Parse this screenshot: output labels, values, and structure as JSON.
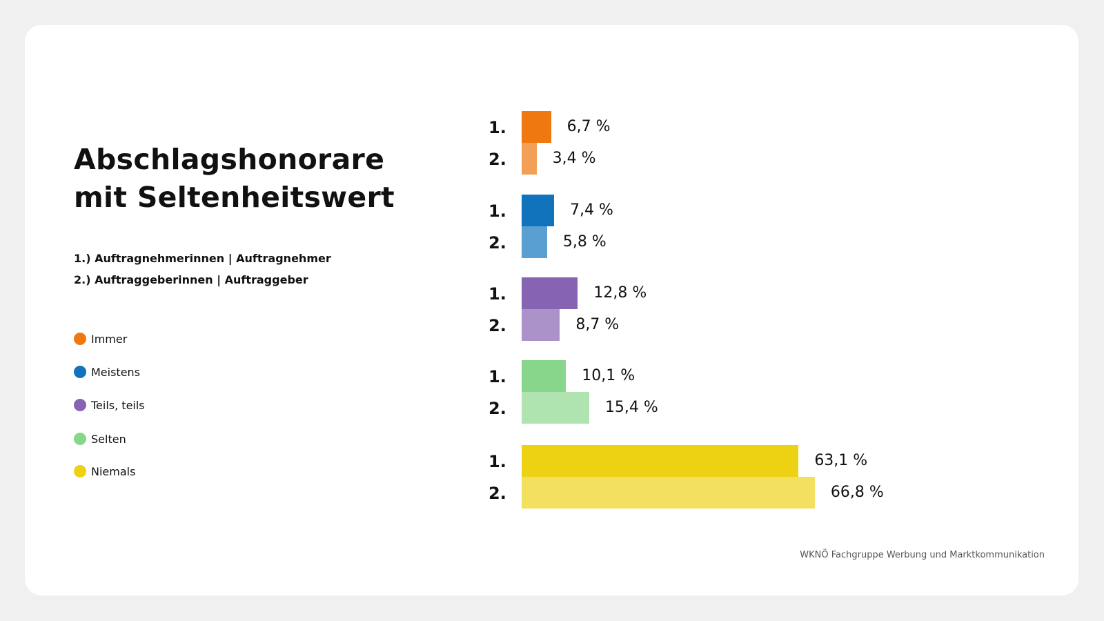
{
  "title_lines": [
    "Abschlagshonorare",
    "mit Seltenheitswert"
  ],
  "subtitles": [
    "1.) Auftragnehmerinnen | Auftragnehmer",
    "2.) Auftraggeberinnen | Auftraggeber"
  ],
  "footer": "WKNÖ Fachgruppe Werbung und Marktkommunikation",
  "chart_data": {
    "type": "bar",
    "orientation": "horizontal",
    "unit": "%",
    "row_labels": [
      "1.",
      "2."
    ],
    "categories": [
      "Immer",
      "Meistens",
      "Teils, teils",
      "Selten",
      "Niemals"
    ],
    "colors": [
      {
        "1": "#ef7811",
        "2": "#f3a057"
      },
      {
        "1": "#1173bc",
        "2": "#5a9fd1"
      },
      {
        "1": "#8663b3",
        "2": "#ab92c9"
      },
      {
        "1": "#88d68b",
        "2": "#afe3b0"
      },
      {
        "1": "#ecd212",
        "2": "#f2e05e"
      }
    ],
    "series": [
      {
        "name": "1.) Auftragnehmerinnen | Auftragnehmer",
        "values": [
          6.7,
          7.4,
          12.8,
          10.1,
          63.1
        ],
        "labels": [
          "6,7 %",
          "7,4 %",
          "12,8 %",
          "10,1 %",
          "63,1 %"
        ]
      },
      {
        "name": "2.) Auftraggeberinnen | Auftraggeber",
        "values": [
          3.4,
          5.8,
          8.7,
          15.4,
          66.8
        ],
        "labels": [
          "3,4 %",
          "5,8 %",
          "8,7 %",
          "15,4 %",
          "66,8 %"
        ]
      }
    ],
    "legend": [
      "Immer",
      "Meistens",
      "Teils, teils",
      "Selten",
      "Niemals"
    ],
    "legend_placement": "left",
    "grid": false
  }
}
